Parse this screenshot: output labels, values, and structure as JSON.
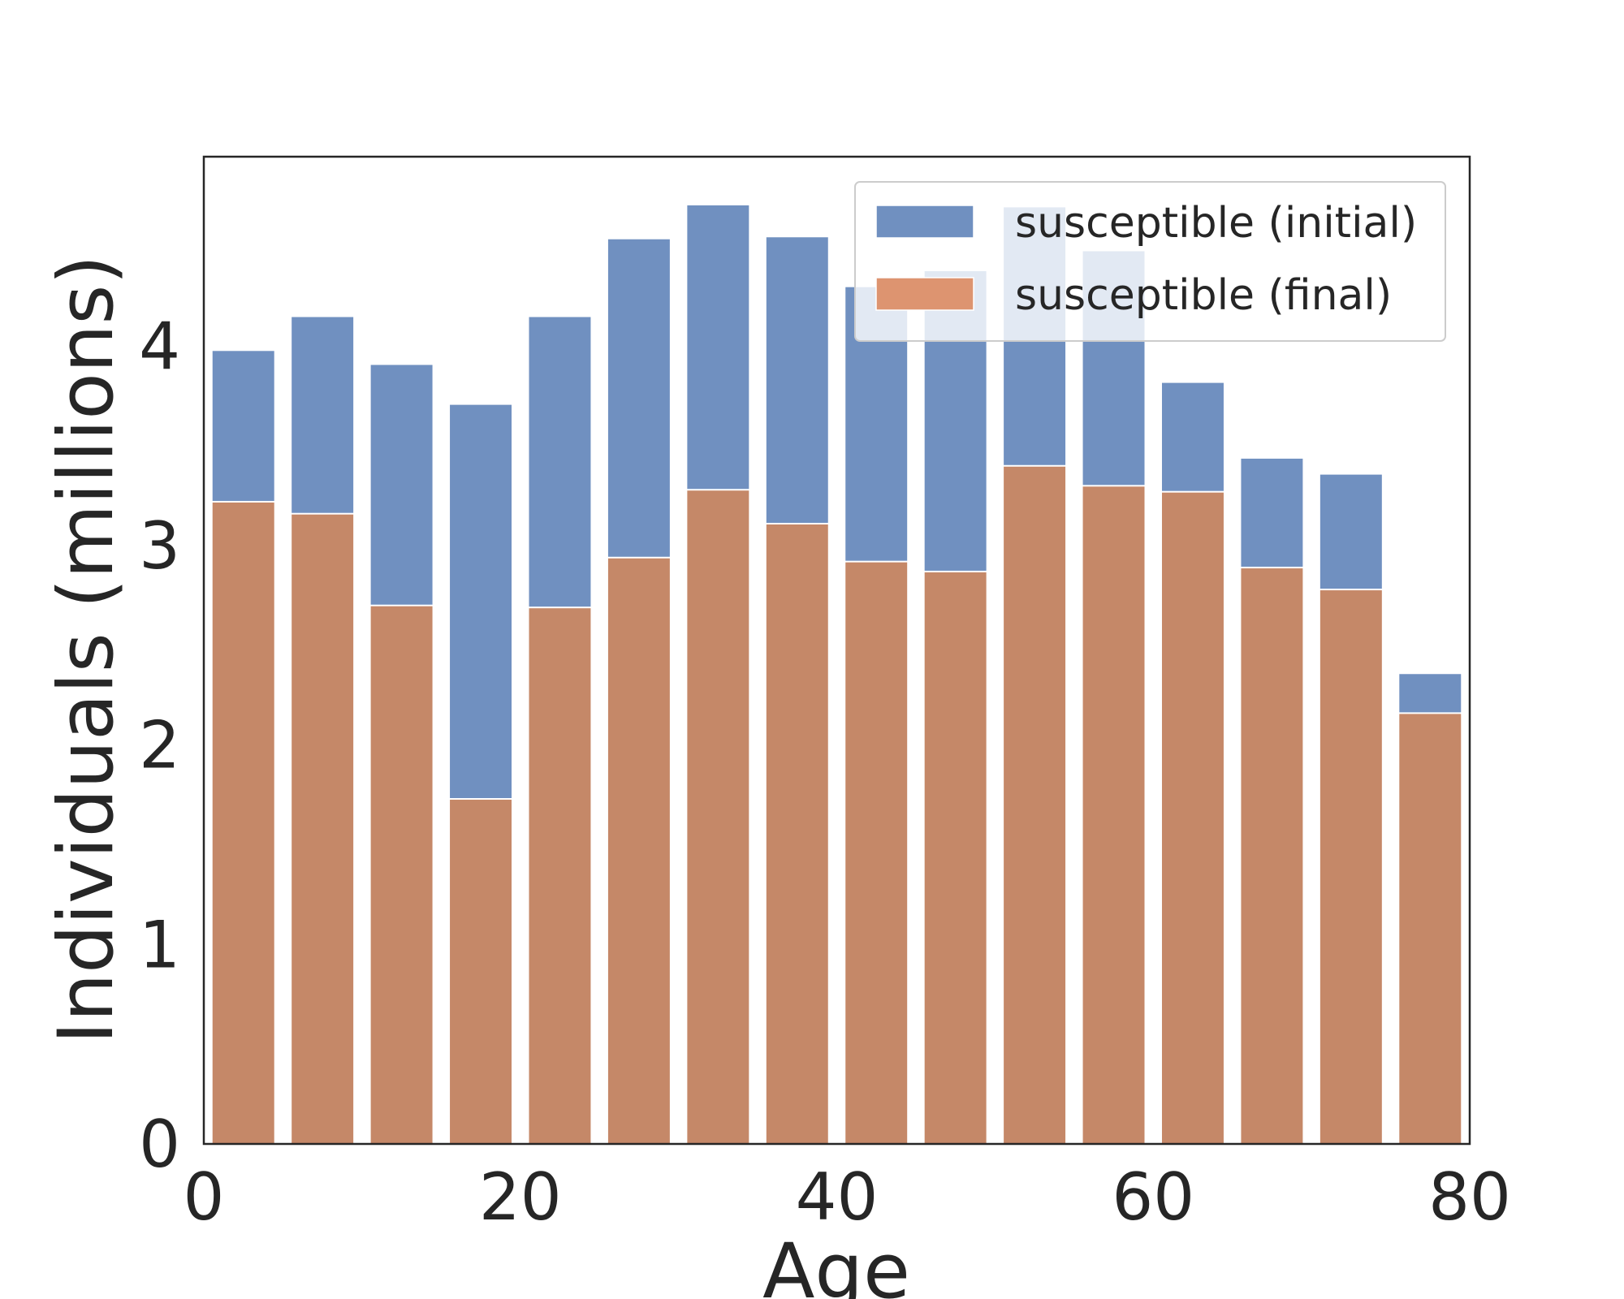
{
  "chart_data": {
    "type": "bar",
    "xlabel": "Age",
    "ylabel": "Individuals (millions)",
    "xlim": [
      0,
      80
    ],
    "ylim": [
      0,
      4.95
    ],
    "xticks": [
      0,
      20,
      40,
      60,
      80
    ],
    "yticks": [
      0,
      1,
      2,
      3,
      4
    ],
    "bin_width": 5,
    "x": [
      2.5,
      7.5,
      12.5,
      17.5,
      22.5,
      27.5,
      32.5,
      37.5,
      42.5,
      47.5,
      52.5,
      57.5,
      62.5,
      67.5,
      72.5,
      77.5
    ],
    "grid": false,
    "legend_position": "top-right",
    "series": [
      {
        "name": "susceptible (initial)",
        "color": "#7090c0",
        "values": [
          3.98,
          4.15,
          3.91,
          3.71,
          4.15,
          4.54,
          4.71,
          4.55,
          4.3,
          4.38,
          4.7,
          4.48,
          3.82,
          3.44,
          3.36,
          2.36
        ]
      },
      {
        "name": "susceptible (final)",
        "color": "#c58868",
        "values": [
          3.22,
          3.16,
          2.7,
          1.73,
          2.69,
          2.94,
          3.28,
          3.11,
          2.92,
          2.87,
          3.4,
          3.3,
          3.27,
          2.89,
          2.78,
          2.16
        ]
      }
    ],
    "legend_colors": [
      "#7090c0",
      "#dd9470"
    ]
  }
}
